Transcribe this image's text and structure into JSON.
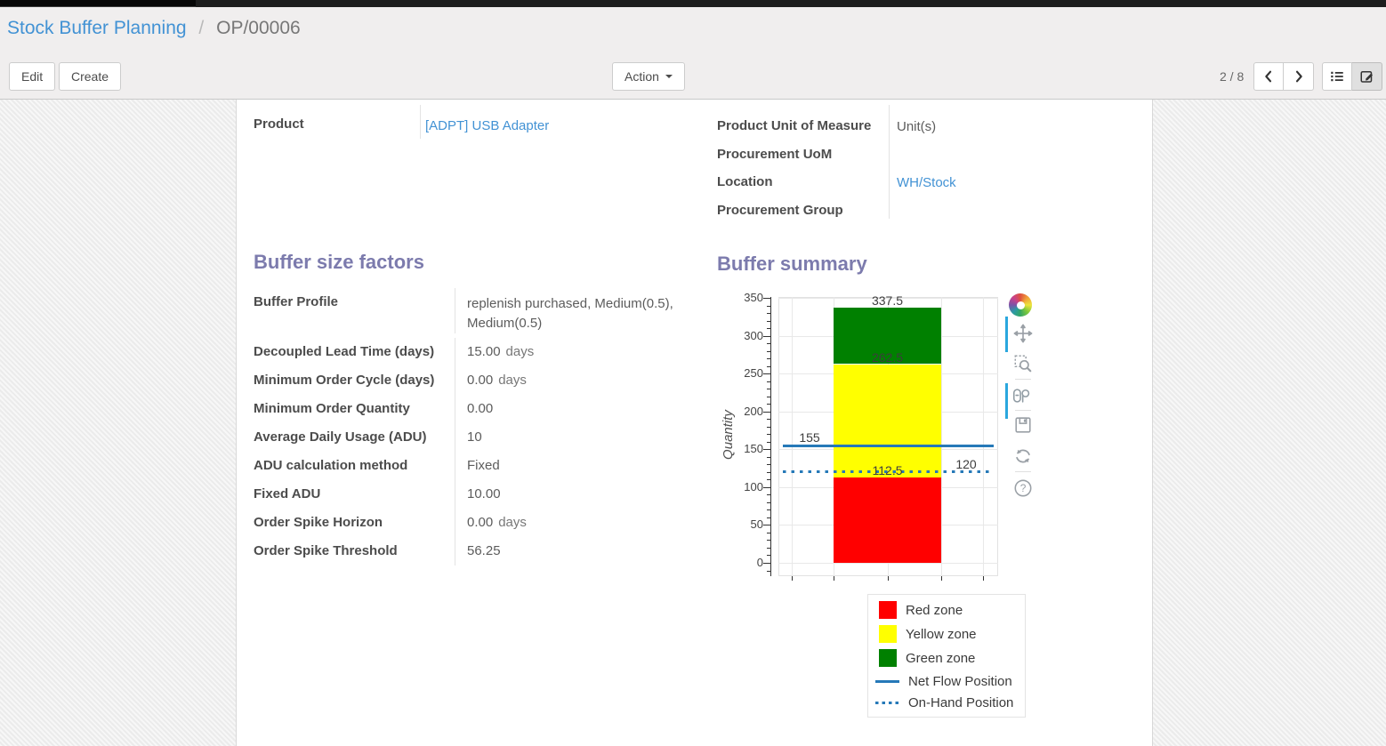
{
  "breadcrumb": {
    "root": "Stock Buffer Planning",
    "separator": "/",
    "current": "OP/00006"
  },
  "toolbar": {
    "edit_label": "Edit",
    "create_label": "Create",
    "action_label": "Action",
    "pager": "2 / 8",
    "icons": [
      "prev-page-icon",
      "next-page-icon",
      "list-view-icon",
      "form-view-icon"
    ],
    "active_view": "form"
  },
  "form": {
    "product": {
      "label": "Product",
      "value": "[ADPT] USB Adapter"
    },
    "right_fields": [
      {
        "label": "Product Unit of Measure",
        "value": "Unit(s)",
        "link": false
      },
      {
        "label": "Procurement UoM",
        "value": "",
        "link": false
      },
      {
        "label": "Location",
        "value": "WH/Stock",
        "link": true
      },
      {
        "label": "Procurement Group",
        "value": "",
        "link": false
      }
    ],
    "sections": {
      "factors_title": "Buffer size factors",
      "summary_title": "Buffer summary"
    },
    "factor_rows": [
      {
        "label": "Buffer Profile",
        "value": "replenish purchased, Medium(0.5), Medium(0.5)",
        "unit": "",
        "link": true,
        "wrap": true
      },
      {
        "label": "Decoupled Lead Time (days)",
        "value": "15.00",
        "unit": "days",
        "link": false
      },
      {
        "label": "Minimum Order Cycle (days)",
        "value": "0.00",
        "unit": "days",
        "link": false
      },
      {
        "label": "Minimum Order Quantity",
        "value": "0.00",
        "unit": "",
        "link": false
      },
      {
        "label": "Average Daily Usage (ADU)",
        "value": "10",
        "unit": "",
        "link": false
      },
      {
        "label": "ADU calculation method",
        "value": "Fixed",
        "unit": "",
        "link": true
      },
      {
        "label": "Fixed ADU",
        "value": "10.00",
        "unit": "",
        "link": false
      },
      {
        "label": "Order Spike Horizon",
        "value": "0.00",
        "unit": "days",
        "link": false
      },
      {
        "label": "Order Spike Threshold",
        "value": "56.25",
        "unit": "",
        "link": false
      }
    ]
  },
  "chart_data": {
    "type": "bar",
    "title": "Buffer summary",
    "ylabel": "Quantity",
    "xlabel": "",
    "ylim": [
      0,
      350
    ],
    "yticks": [
      0,
      50,
      100,
      150,
      200,
      250,
      300,
      350
    ],
    "grid": true,
    "zones": [
      {
        "name": "Red zone",
        "from": 0,
        "to": 112.5,
        "color": "#ff0000"
      },
      {
        "name": "Yellow zone",
        "from": 112.5,
        "to": 262.5,
        "color": "#ffff00"
      },
      {
        "name": "Green zone",
        "from": 262.5,
        "to": 337.5,
        "color": "#008000"
      }
    ],
    "lines": [
      {
        "name": "Net Flow Position",
        "value": 155,
        "style": "solid",
        "color": "#2679b8",
        "label_side": "left"
      },
      {
        "name": "On-Hand Position",
        "value": 120,
        "style": "dotted",
        "color": "#2679b8",
        "label_side": "right"
      }
    ],
    "bar_value_labels": [
      337.5,
      262.5,
      112.5
    ],
    "legend": [
      "Red zone",
      "Yellow zone",
      "Green zone",
      "Net Flow Position",
      "On-Hand Position"
    ],
    "legend_position": "bottom-right"
  },
  "chart_toolbar": {
    "icons": [
      "bokeh-logo",
      "pan-tool-icon",
      "box-zoom-icon",
      "hover-tool-icon",
      "save-icon",
      "reset-icon",
      "help-icon"
    ],
    "active_tools": [
      "pan-tool-icon",
      "hover-tool-icon"
    ]
  },
  "colors": {
    "accent_link": "#4292d4",
    "section_heading": "#7c7bad",
    "net_flow_blue": "#2679b8",
    "active_tool_indicator": "#2aa7de"
  }
}
